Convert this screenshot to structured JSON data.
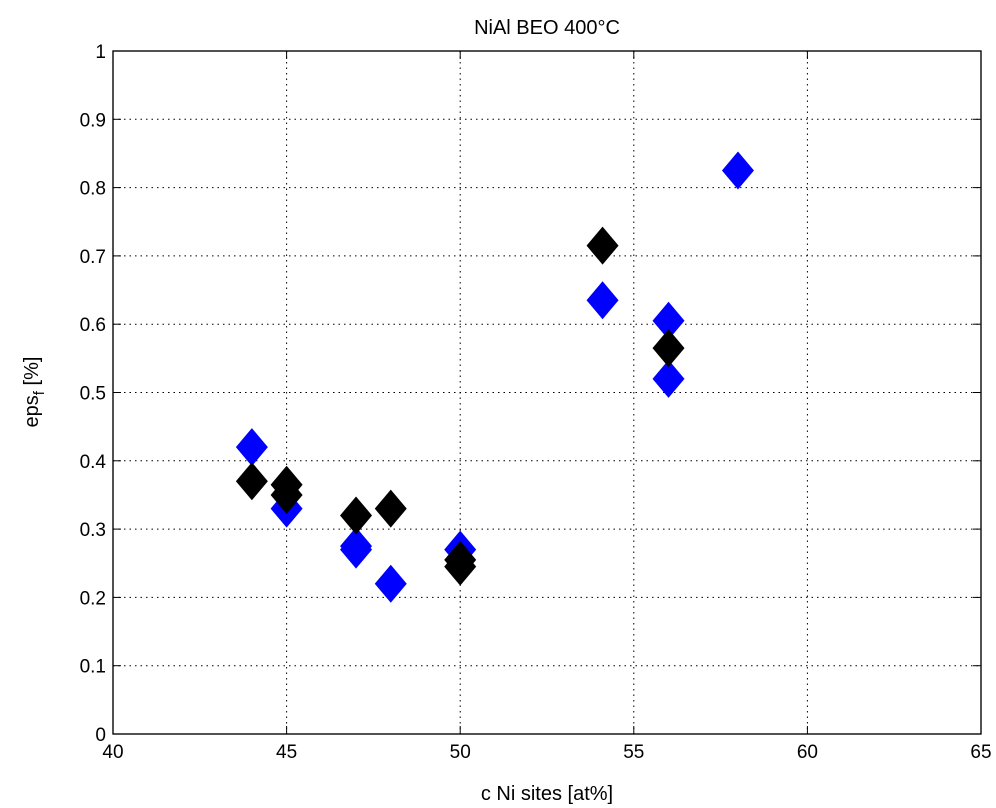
{
  "chart_data": {
    "type": "scatter",
    "title": "NiAl BEO 400°C",
    "xlabel": "c Ni sites [at%]",
    "ylabel": {
      "main": "eps",
      "subscript": "f",
      "suffix": " [%]"
    },
    "xlim": [
      40,
      65
    ],
    "ylim": [
      0,
      1
    ],
    "xticks": [
      40,
      45,
      50,
      55,
      60,
      65
    ],
    "xtick_labels": [
      "40",
      "45",
      "50",
      "55",
      "60",
      "65"
    ],
    "yticks": [
      0,
      0.1,
      0.2,
      0.3,
      0.4,
      0.5,
      0.6,
      0.7,
      0.8,
      0.9,
      1
    ],
    "ytick_labels": [
      "0",
      "0.1",
      "0.2",
      "0.3",
      "0.4",
      "0.5",
      "0.6",
      "0.7",
      "0.8",
      "0.9",
      "1"
    ],
    "grid": true,
    "marker": "diamond",
    "series": [
      {
        "color": "#0000ff",
        "points": [
          {
            "x": 44,
            "y": 0.42
          },
          {
            "x": 45,
            "y": 0.33
          },
          {
            "x": 47,
            "y": 0.27
          },
          {
            "x": 47,
            "y": 0.275
          },
          {
            "x": 48,
            "y": 0.22
          },
          {
            "x": 50,
            "y": 0.27
          },
          {
            "x": 54.1,
            "y": 0.635
          },
          {
            "x": 56,
            "y": 0.605
          },
          {
            "x": 56,
            "y": 0.52
          },
          {
            "x": 58,
            "y": 0.825
          }
        ]
      },
      {
        "color": "#000000",
        "points": [
          {
            "x": 44,
            "y": 0.37
          },
          {
            "x": 45,
            "y": 0.365
          },
          {
            "x": 45,
            "y": 0.35
          },
          {
            "x": 47,
            "y": 0.32
          },
          {
            "x": 48,
            "y": 0.33
          },
          {
            "x": 50,
            "y": 0.255
          },
          {
            "x": 50,
            "y": 0.245
          },
          {
            "x": 54.1,
            "y": 0.715
          },
          {
            "x": 56,
            "y": 0.565
          }
        ]
      }
    ]
  }
}
